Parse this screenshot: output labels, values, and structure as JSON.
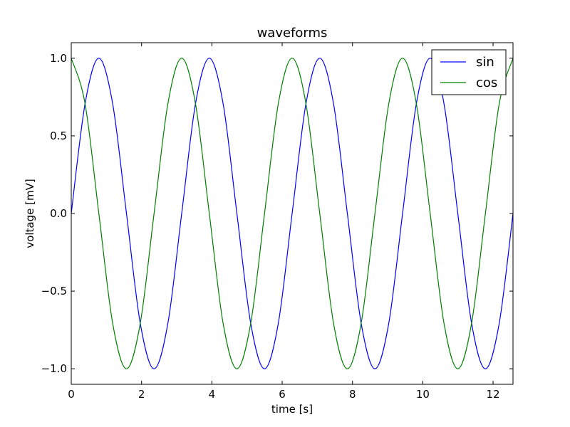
{
  "chart_data": {
    "type": "line",
    "title": "waveforms",
    "xlabel": "time [s]",
    "ylabel": "voltage [mV]",
    "xlim": [
      0,
      12.566
    ],
    "ylim": [
      -1.1,
      1.1
    ],
    "xticks": [
      0,
      2,
      4,
      6,
      8,
      10,
      12
    ],
    "xtick_labels": [
      "0",
      "2",
      "4",
      "6",
      "8",
      "10",
      "12"
    ],
    "yticks": [
      -1.0,
      -0.5,
      0.0,
      0.5,
      1.0
    ],
    "ytick_labels": [
      "−1.0",
      "−0.5",
      "0.0",
      "0.5",
      "1.0"
    ],
    "grid": false,
    "legend_position": "top-right",
    "series": [
      {
        "name": "sin",
        "color": "#0000ff",
        "x": [
          0,
          0.393,
          0.785,
          1.178,
          1.571,
          1.963,
          2.356,
          2.749,
          3.142,
          3.534,
          3.927,
          4.32,
          4.712,
          5.105,
          5.498,
          5.89,
          6.283,
          6.676,
          7.069,
          7.461,
          7.854,
          8.247,
          8.639,
          9.032,
          9.425,
          9.817,
          10.21,
          10.603,
          10.996,
          11.388,
          11.781,
          12.174,
          12.566
        ],
        "y": [
          0,
          0.707,
          1.0,
          0.707,
          0,
          -0.707,
          -1.0,
          -0.707,
          0,
          0.707,
          1.0,
          0.707,
          0,
          -0.707,
          -1.0,
          -0.707,
          0,
          0.707,
          1.0,
          0.707,
          0,
          -0.707,
          -1.0,
          -0.707,
          0,
          0.707,
          1.0,
          0.707,
          0,
          -0.707,
          -1.0,
          -0.707,
          0
        ]
      },
      {
        "name": "cos",
        "color": "#008000",
        "x": [
          0,
          0.393,
          0.785,
          1.178,
          1.571,
          1.963,
          2.356,
          2.749,
          3.142,
          3.534,
          3.927,
          4.32,
          4.712,
          5.105,
          5.498,
          5.89,
          6.283,
          6.676,
          7.069,
          7.461,
          7.854,
          8.247,
          8.639,
          9.032,
          9.425,
          9.817,
          10.21,
          10.603,
          10.996,
          11.388,
          11.781,
          12.174,
          12.566
        ],
        "y": [
          1.0,
          0.707,
          0,
          -0.707,
          -1.0,
          -0.707,
          0,
          0.707,
          1.0,
          0.707,
          0,
          -0.707,
          -1.0,
          -0.707,
          0,
          0.707,
          1.0,
          0.707,
          0,
          -0.707,
          -1.0,
          -0.707,
          0,
          0.707,
          1.0,
          0.707,
          0,
          -0.707,
          -1.0,
          -0.707,
          0,
          0.707,
          1.0
        ]
      }
    ]
  }
}
